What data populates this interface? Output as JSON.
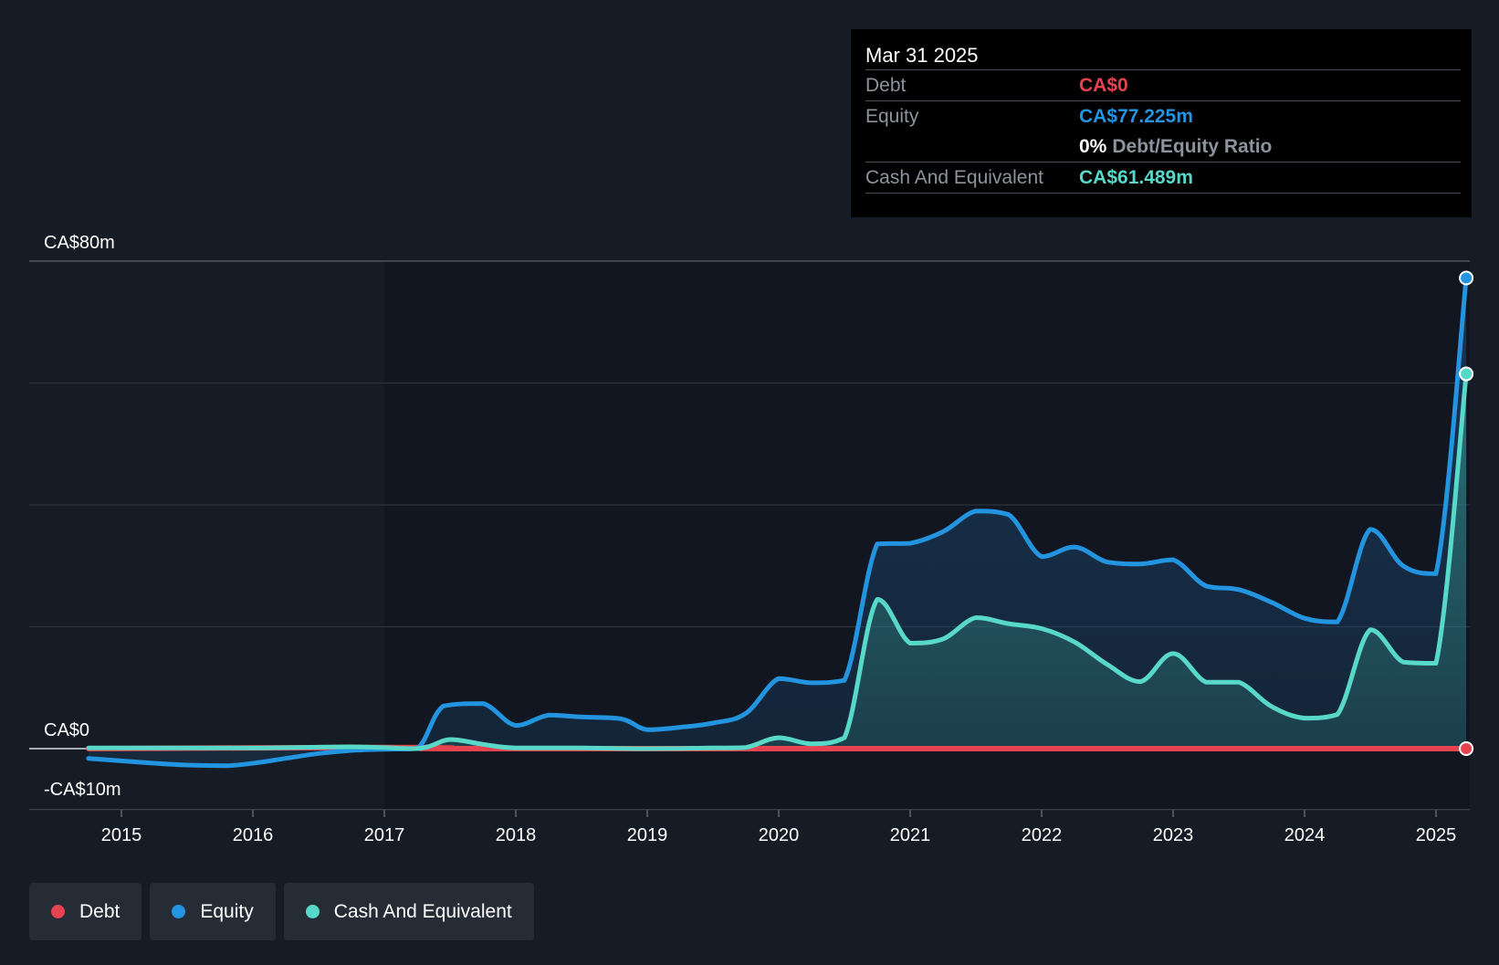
{
  "chart_data": {
    "type": "area",
    "y_axis": {
      "min": -10,
      "max": 80,
      "labels": [
        "CA$80m",
        "CA$0",
        "-CA$10m"
      ],
      "label_values": [
        80,
        0,
        -10
      ],
      "gridlines": [
        80,
        60,
        40,
        20,
        0,
        -10
      ]
    },
    "x_axis": {
      "tick_labels": [
        "2015",
        "2016",
        "2017",
        "2018",
        "2019",
        "2020",
        "2021",
        "2022",
        "2023",
        "2024",
        "2025"
      ],
      "tick_values": [
        2015,
        2016,
        2017,
        2018,
        2019,
        2020,
        2021,
        2022,
        2023,
        2024,
        2025
      ],
      "range": [
        2014.6,
        2025.25
      ]
    },
    "series": [
      {
        "name": "Debt",
        "color": "#e5434f",
        "points": [
          [
            2014.75,
            0
          ],
          [
            2017.0,
            0.2
          ],
          [
            2017.5,
            0.1
          ],
          [
            2018.0,
            0
          ],
          [
            2025.23,
            0
          ]
        ]
      },
      {
        "name": "Equity",
        "color": "#2394df",
        "points": [
          [
            2014.75,
            -1.6
          ],
          [
            2015.0,
            -2.0
          ],
          [
            2015.25,
            -2.4
          ],
          [
            2015.5,
            -2.7
          ],
          [
            2015.8,
            -2.8
          ],
          [
            2016.0,
            -2.4
          ],
          [
            2016.25,
            -1.6
          ],
          [
            2016.5,
            -0.8
          ],
          [
            2016.75,
            -0.3
          ],
          [
            2017.0,
            -0.1
          ],
          [
            2017.25,
            0.0
          ],
          [
            2017.45,
            7.0
          ],
          [
            2017.75,
            7.4
          ],
          [
            2018.0,
            3.8
          ],
          [
            2018.25,
            5.5
          ],
          [
            2018.5,
            5.2
          ],
          [
            2018.8,
            4.9
          ],
          [
            2019.0,
            3.1
          ],
          [
            2019.25,
            3.5
          ],
          [
            2019.5,
            4.2
          ],
          [
            2019.75,
            5.8
          ],
          [
            2020.0,
            11.5
          ],
          [
            2020.25,
            10.8
          ],
          [
            2020.5,
            11.2
          ],
          [
            2020.75,
            33.6
          ],
          [
            2021.0,
            33.7
          ],
          [
            2021.25,
            35.6
          ],
          [
            2021.5,
            39.0
          ],
          [
            2021.75,
            38.4
          ],
          [
            2022.0,
            31.5
          ],
          [
            2022.25,
            33.1
          ],
          [
            2022.5,
            30.6
          ],
          [
            2022.75,
            30.3
          ],
          [
            2023.0,
            31.0
          ],
          [
            2023.25,
            26.7
          ],
          [
            2023.5,
            26.1
          ],
          [
            2023.75,
            24.0
          ],
          [
            2024.0,
            21.4
          ],
          [
            2024.25,
            20.8
          ],
          [
            2024.5,
            36.0
          ],
          [
            2024.75,
            30.0
          ],
          [
            2025.0,
            28.7
          ],
          [
            2025.23,
            77.225
          ]
        ]
      },
      {
        "name": "Cash And Equivalent",
        "color": "#58d8c9",
        "points": [
          [
            2014.75,
            0.1
          ],
          [
            2016.0,
            0.1
          ],
          [
            2016.75,
            0.3
          ],
          [
            2017.25,
            0.0
          ],
          [
            2017.5,
            1.5
          ],
          [
            2017.75,
            0.7
          ],
          [
            2018.0,
            0.1
          ],
          [
            2018.5,
            0.1
          ],
          [
            2019.0,
            0.0
          ],
          [
            2019.5,
            0.1
          ],
          [
            2019.75,
            0.2
          ],
          [
            2020.0,
            1.8
          ],
          [
            2020.25,
            0.8
          ],
          [
            2020.5,
            1.8
          ],
          [
            2020.75,
            24.5
          ],
          [
            2021.0,
            17.3
          ],
          [
            2021.25,
            18.0
          ],
          [
            2021.5,
            21.5
          ],
          [
            2021.75,
            20.5
          ],
          [
            2022.0,
            19.7
          ],
          [
            2022.25,
            17.5
          ],
          [
            2022.5,
            13.8
          ],
          [
            2022.75,
            11.0
          ],
          [
            2023.0,
            15.6
          ],
          [
            2023.25,
            10.9
          ],
          [
            2023.5,
            10.9
          ],
          [
            2023.75,
            6.9
          ],
          [
            2024.0,
            5.0
          ],
          [
            2024.25,
            5.6
          ],
          [
            2024.5,
            19.5
          ],
          [
            2024.75,
            14.2
          ],
          [
            2025.0,
            14.0
          ],
          [
            2025.23,
            61.489
          ]
        ]
      }
    ],
    "highlight_x": 2025.23,
    "grid": true,
    "shaded_region": "forecast-free history; darker panel from 2017 onward"
  },
  "tooltip": {
    "date": "Mar 31 2025",
    "rows": [
      {
        "label": "Debt",
        "value": "CA$0",
        "color": "#e5434f"
      },
      {
        "label": "Equity",
        "value": "CA$77.225m",
        "color": "#2394df"
      },
      {
        "label": "Cash And Equivalent",
        "value": "CA$61.489m",
        "color": "#58d8c9"
      }
    ],
    "ratio_value": "0%",
    "ratio_label": "Debt/Equity Ratio"
  },
  "legend": [
    {
      "label": "Debt",
      "color": "#e5434f"
    },
    {
      "label": "Equity",
      "color": "#2394df"
    },
    {
      "label": "Cash And Equivalent",
      "color": "#58d8c9"
    }
  ]
}
